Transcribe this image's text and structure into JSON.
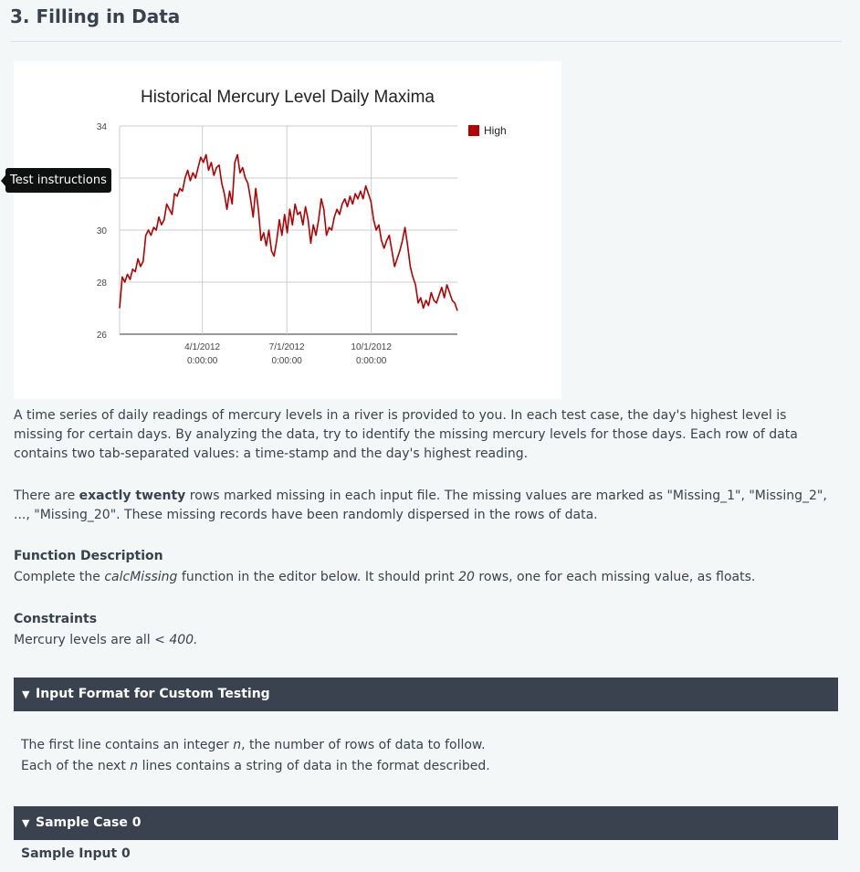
{
  "heading": "3. Filling in Data",
  "tooltip": "Test instructions",
  "chart_data": {
    "type": "line",
    "title": "Historical Mercury Level Daily Maxima",
    "legend_position": "top-right",
    "grid": true,
    "ylim": [
      26,
      34
    ],
    "y_ticks": [
      "34",
      "30",
      "28",
      "26"
    ],
    "x_ticks": [
      {
        "date": "4/1/2012",
        "time": "0:00:00"
      },
      {
        "date": "7/1/2012",
        "time": "0:00:00"
      },
      {
        "date": "10/1/2012",
        "time": "0:00:00"
      }
    ],
    "series": [
      {
        "name": "High",
        "color": "#b30000",
        "x_range": [
          "1/3/2012",
          "12/31/2012"
        ],
        "values": [
          27.0,
          28.2,
          28.0,
          28.3,
          28.1,
          28.5,
          28.4,
          28.9,
          28.6,
          28.8,
          29.8,
          30.0,
          29.8,
          30.1,
          30.0,
          30.5,
          30.2,
          30.4,
          31.0,
          30.8,
          30.6,
          31.4,
          31.3,
          31.6,
          31.5,
          32.0,
          32.3,
          31.9,
          32.2,
          32.0,
          32.4,
          32.8,
          32.6,
          32.9,
          32.3,
          32.6,
          32.1,
          32.4,
          32.5,
          31.8,
          31.4,
          30.8,
          31.5,
          31.0,
          32.6,
          32.9,
          32.2,
          32.4,
          32.0,
          31.8,
          31.2,
          30.5,
          31.6,
          30.8,
          29.6,
          29.9,
          29.4,
          30.0,
          29.2,
          29.0,
          29.6,
          30.4,
          29.8,
          30.6,
          29.9,
          30.8,
          30.2,
          31.0,
          30.6,
          30.7,
          30.2,
          30.9,
          30.4,
          29.5,
          30.2,
          29.8,
          30.4,
          31.2,
          30.8,
          29.8,
          30.1,
          30.0,
          30.5,
          30.8,
          30.6,
          31.0,
          31.2,
          30.9,
          31.3,
          31.0,
          31.4,
          31.2,
          31.5,
          31.2,
          31.7,
          31.4,
          31.1,
          30.4,
          30.0,
          30.2,
          29.6,
          29.3,
          29.6,
          29.8,
          29.2,
          28.6,
          28.9,
          29.2,
          29.6,
          30.1,
          29.4,
          28.6,
          28.2,
          27.9,
          27.2,
          27.4,
          27.0,
          27.3,
          27.1,
          27.6,
          27.3,
          27.2,
          27.5,
          27.8,
          27.4,
          27.9,
          27.6,
          27.3,
          27.2,
          26.9
        ]
      }
    ]
  },
  "paragraphs": {
    "intro": "A time series of daily readings of mercury levels in a river is provided to you. In each test case, the day's highest level is missing for certain days. By analyzing the data, try to identify the missing mercury levels for those days. Each row of data contains two tab-separated values: a time-stamp and the day's highest reading.",
    "p2_a": "There are ",
    "p2_bold": "exactly twenty",
    "p2_b": " rows marked missing in each input file. The missing values are marked as \"Missing_1\", \"Missing_2\", ..., \"Missing_20\". These missing records have been randomly dispersed in the rows of data."
  },
  "function_description": {
    "title": "Function Description",
    "text_a": "Complete the ",
    "func_name": "calcMissing",
    "text_b": " function in the editor below. It should print ",
    "count": "20",
    "text_c": " rows, one for each missing value, as floats."
  },
  "constraints": {
    "title": "Constraints",
    "text_a": "Mercury levels are all ",
    "value": "< 400."
  },
  "input_format": {
    "title": "Input Format for Custom Testing",
    "line1_a": "The first line contains an integer ",
    "var": "n",
    "line1_b": ", the number of rows of data to follow.",
    "line2_a": "Each of the next ",
    "line2_b": " lines contains a string of data in the format described."
  },
  "sample_case": {
    "title": "Sample Case 0",
    "sample_input_label": "Sample Input 0"
  }
}
